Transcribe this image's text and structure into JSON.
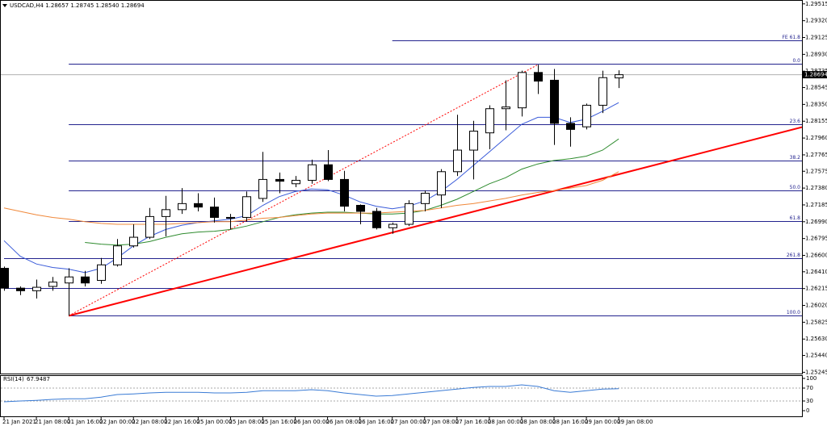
{
  "chart_data": [
    {
      "type": "candlestick",
      "title": "USDCAD,H4 1.28657 1.28745 1.28540 1.28694",
      "x": [
        "21 Jan 00:00",
        "21 Jan 04:00",
        "21 Jan 08:00",
        "21 Jan 12:00",
        "21 Jan 16:00",
        "21 Jan 20:00",
        "22 Jan 00:00",
        "22 Jan 04:00",
        "22 Jan 08:00",
        "22 Jan 12:00",
        "22 Jan 16:00",
        "22 Jan 20:00",
        "25 Jan 00:00",
        "25 Jan 04:00",
        "25 Jan 08:00",
        "25 Jan 12:00",
        "25 Jan 16:00",
        "25 Jan 20:00",
        "26 Jan 00:00",
        "26 Jan 04:00",
        "26 Jan 08:00",
        "26 Jan 12:00",
        "26 Jan 16:00",
        "26 Jan 20:00",
        "27 Jan 00:00",
        "27 Jan 04:00",
        "27 Jan 08:00",
        "27 Jan 12:00",
        "27 Jan 16:00",
        "27 Jan 20:00",
        "28 Jan 00:00",
        "28 Jan 04:00",
        "28 Jan 08:00",
        "28 Jan 12:00",
        "28 Jan 16:00",
        "28 Jan 20:00",
        "29 Jan 00:00",
        "29 Jan 04:00",
        "29 Jan 08:00"
      ],
      "xticks": [
        {
          "value": "21 Jan 00:00",
          "label": "21 Jan 2021"
        },
        "21 Jan 08:00",
        "21 Jan 16:00",
        "22 Jan 00:00",
        "22 Jan 08:00",
        "22 Jan 16:00",
        "25 Jan 00:00",
        "25 Jan 08:00",
        "25 Jan 16:00",
        "26 Jan 00:00",
        "26 Jan 08:00",
        "26 Jan 16:00",
        "27 Jan 00:00",
        "27 Jan 08:00",
        "27 Jan 16:00",
        "28 Jan 00:00",
        "28 Jan 08:00",
        "28 Jan 16:00",
        "29 Jan 00:00",
        "29 Jan 08:00"
      ],
      "open": [
        1.2645,
        1.2622,
        1.2619,
        1.2624,
        1.2628,
        1.2635,
        1.2631,
        1.2649,
        1.2671,
        1.2681,
        1.2705,
        1.2713,
        1.272,
        1.2716,
        1.2703,
        1.2704,
        1.2726,
        1.2748,
        1.2743,
        1.2747,
        1.2765,
        1.2748,
        1.2718,
        1.2711,
        1.2692,
        1.2696,
        1.272,
        1.273,
        1.2757,
        1.2782,
        1.2802,
        1.283,
        1.2831,
        1.2872,
        1.2863,
        1.2813,
        1.2809,
        1.2834,
        1.28657
      ],
      "high": [
        1.2647,
        1.2624,
        1.2632,
        1.2635,
        1.2645,
        1.2642,
        1.2657,
        1.2679,
        1.2696,
        1.2715,
        1.2729,
        1.2738,
        1.2732,
        1.2727,
        1.2708,
        1.2734,
        1.278,
        1.2756,
        1.2752,
        1.2771,
        1.2782,
        1.2758,
        1.2719,
        1.2715,
        1.2698,
        1.2724,
        1.2735,
        1.276,
        1.2823,
        1.2816,
        1.2834,
        1.2863,
        1.2874,
        1.2881,
        1.2876,
        1.282,
        1.2836,
        1.2874,
        1.28745
      ],
      "low": [
        1.2619,
        1.2614,
        1.261,
        1.2619,
        1.259,
        1.2624,
        1.2627,
        1.2647,
        1.2669,
        1.2679,
        1.2682,
        1.2708,
        1.2711,
        1.2698,
        1.269,
        1.2699,
        1.2722,
        1.2732,
        1.2739,
        1.2743,
        1.2746,
        1.2711,
        1.2696,
        1.269,
        1.2685,
        1.2694,
        1.2711,
        1.2715,
        1.2752,
        1.2748,
        1.2783,
        1.2805,
        1.2821,
        1.2847,
        1.2788,
        1.2786,
        1.2806,
        1.2825,
        1.2854
      ],
      "close": [
        1.2622,
        1.2619,
        1.2623,
        1.2629,
        1.2635,
        1.2628,
        1.2649,
        1.2671,
        1.2681,
        1.2705,
        1.2713,
        1.272,
        1.2716,
        1.2704,
        1.2704,
        1.2728,
        1.2748,
        1.2746,
        1.2747,
        1.2765,
        1.2748,
        1.2717,
        1.2711,
        1.2692,
        1.2696,
        1.272,
        1.2732,
        1.2757,
        1.2782,
        1.2804,
        1.283,
        1.2832,
        1.2872,
        1.2862,
        1.2813,
        1.2806,
        1.2834,
        1.2866,
        1.28694
      ],
      "up_color": "#ffffff",
      "down_color": "#000000",
      "ylim": [
        1.2523,
        1.2956
      ],
      "yticks": [
        1.29515,
        {
          "value": 1.2932,
          "label": "1.29320"
        },
        1.29125,
        {
          "value": 1.2893,
          "label": "1.28930"
        },
        1.28735,
        1.28545,
        {
          "value": 1.2835,
          "label": "1.28350"
        },
        1.28155,
        {
          "value": 1.2796,
          "label": "1.27960"
        },
        1.27765,
        1.27575,
        {
          "value": 1.2738,
          "label": "1.27380"
        },
        1.27185,
        {
          "value": 1.2699,
          "label": "1.26990"
        },
        1.26795,
        {
          "value": 1.266,
          "label": "1.26600"
        },
        {
          "value": 1.2641,
          "label": "1.26410"
        },
        1.26215,
        {
          "value": 1.2602,
          "label": "1.26020"
        },
        1.25825,
        {
          "value": 1.2563,
          "label": "1.25630"
        },
        {
          "value": 1.2544,
          "label": "1.25440"
        },
        1.25245
      ],
      "overlays": [
        {
          "color": "#3a5bd9",
          "values": [
            1.2677,
            1.2659,
            1.265,
            1.2646,
            1.2644,
            1.264,
            1.2645,
            1.2657,
            1.2671,
            1.2682,
            1.269,
            1.2695,
            1.2698,
            1.27,
            1.2702,
            1.2706,
            1.2718,
            1.2728,
            1.2734,
            1.2737,
            1.2736,
            1.273,
            1.2722,
            1.2717,
            1.2714,
            1.2717,
            1.2723,
            1.2734,
            1.2748,
            1.2764,
            1.278,
            1.2796,
            1.2812,
            1.282,
            1.282,
            1.2814,
            1.2818,
            1.2827,
            1.2837
          ]
        },
        {
          "color": "#2e8b2e",
          "values": [
            null,
            null,
            null,
            null,
            null,
            1.2675,
            1.2673,
            1.2672,
            1.2673,
            1.2676,
            1.2681,
            1.2685,
            1.2687,
            1.2688,
            1.269,
            1.2694,
            1.2699,
            1.2704,
            1.2707,
            1.2709,
            1.271,
            1.271,
            1.2709,
            1.2708,
            1.2708,
            1.2709,
            1.2712,
            1.2718,
            1.2725,
            1.2734,
            1.2743,
            1.275,
            1.276,
            1.2766,
            1.277,
            1.2772,
            1.2775,
            1.2782,
            1.2795
          ]
        },
        {
          "color": "#f0883a",
          "values": [
            1.2715,
            1.2711,
            1.2707,
            1.2704,
            1.2702,
            1.2699,
            1.2697,
            1.2696,
            1.2696,
            1.2696,
            1.2696,
            1.2697,
            1.2698,
            1.2699,
            1.2699,
            1.2701,
            1.2703,
            1.2704,
            1.2706,
            1.2708,
            1.2709,
            1.2709,
            1.2709,
            1.2709,
            1.271,
            1.2711,
            1.2712,
            1.2715,
            1.2718,
            1.272,
            1.2723,
            1.2726,
            1.273,
            1.2733,
            1.2735,
            1.2738,
            1.2741,
            1.2747,
            1.2757
          ]
        }
      ],
      "fib_color": "#23238e",
      "fib_levels": [
        {
          "value": 1.2909,
          "label": "FE 61.8",
          "start": "27 Jan 00:00"
        },
        {
          "value": 1.2882,
          "label": "0.0",
          "start": "21 Jan 16:00"
        },
        {
          "value": 1.2812,
          "label": "23.6",
          "start": "21 Jan 16:00"
        },
        {
          "value": 1.277,
          "label": "38.2",
          "start": "21 Jan 16:00"
        },
        {
          "value": 1.2735,
          "label": "50.0",
          "start": "21 Jan 16:00"
        },
        {
          "value": 1.27,
          "label": "61.8",
          "start": "21 Jan 16:00"
        },
        {
          "value": 1.2657,
          "label": "261.8",
          "start": "21 Jan 00:00"
        },
        {
          "value": 1.2622,
          "start": "21 Jan 00:00"
        },
        {
          "value": 1.259,
          "label": "100.0",
          "start": "21 Jan 16:00"
        }
      ],
      "lines": [
        {
          "x": [
            "21 Jan 16:00",
            "29 Jan 08:00"
          ],
          "values": [
            1.259,
            1.2754
          ],
          "color": "#ff0000",
          "style": "solid",
          "width": 2,
          "ray": true
        },
        {
          "x": [
            "21 Jan 16:00",
            "28 Jan 12:00"
          ],
          "values": [
            1.259,
            1.2881
          ],
          "color": "#ff0000",
          "style": "dotted",
          "width": 1,
          "ray": false
        }
      ],
      "price_line": true
    },
    {
      "type": "line",
      "label": "RSI(14)",
      "color": "#3a7bd5",
      "values": [
        27.5,
        30,
        32,
        35,
        37,
        37,
        42,
        50,
        52,
        55,
        57,
        57,
        57,
        55,
        55,
        57,
        62,
        62,
        62,
        65,
        62,
        55,
        50,
        45,
        47,
        52,
        57,
        62,
        67,
        72,
        75,
        75,
        80,
        75,
        62,
        57,
        62,
        67,
        67.9487
      ],
      "ylim": [
        0,
        100
      ],
      "yticks": [
        100,
        70,
        30,
        0
      ],
      "levels": [
        70,
        30
      ]
    }
  ]
}
